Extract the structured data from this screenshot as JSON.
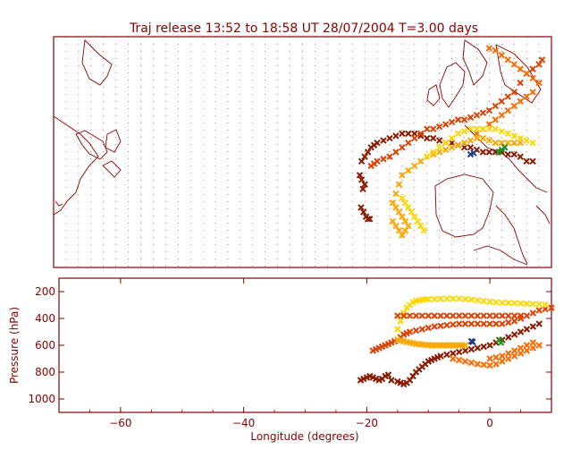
{
  "title": "Traj release 13:52 to 18:58 UT 28/07/2004     T=3.00 days",
  "colors": {
    "frame": "#8b0000",
    "text": "#8b0000",
    "coast": "#8b0000",
    "grid": "#8b0000",
    "background": "#ffffff"
  },
  "chart_data": [
    {
      "type": "scatter",
      "panel": "map",
      "title": "Traj release 13:52 to 18:58 UT 28/07/2004     T=3.00 days",
      "xlim": [
        -70,
        10
      ],
      "ylim": [
        20,
        70
      ],
      "grid": true,
      "series": [
        {
          "color": "#8b1a00",
          "x": [
            -20.5,
            -20,
            -19.5,
            -19,
            -18.5,
            -18,
            -17,
            -16,
            -15,
            -14,
            -13,
            -12,
            -11,
            -10,
            -9,
            -8,
            -7,
            -6,
            -5,
            -4,
            -3,
            -2,
            -1,
            0,
            1,
            2,
            3,
            4,
            5,
            6,
            7,
            -20.8,
            -20.5,
            -20,
            -20.3,
            -20.6,
            -20.2,
            -19.8,
            -19.5,
            -19.2
          ],
          "y": [
            43,
            44,
            45,
            46,
            46.5,
            47,
            47.5,
            48,
            48.5,
            49,
            49,
            49,
            48.5,
            48,
            48,
            47.5,
            47,
            47,
            46.5,
            46,
            46,
            45.5,
            45,
            45,
            45,
            45,
            44.5,
            44.5,
            44,
            43,
            43,
            40,
            39,
            38,
            37,
            33,
            32,
            31,
            30.5,
            30.5
          ]
        },
        {
          "color": "#e04000",
          "x": [
            -19,
            -18.5,
            -18,
            -17,
            -16,
            -15,
            -14,
            -13,
            -12,
            -11,
            -10,
            -9,
            -8,
            -7,
            -6,
            -5,
            -4,
            -3,
            -2,
            -1,
            0,
            1,
            2,
            3,
            4,
            5,
            6,
            7,
            8,
            8.5
          ],
          "y": [
            42,
            42.5,
            43,
            43.5,
            44,
            45,
            46,
            47,
            48,
            49,
            50,
            50,
            50.5,
            51,
            51.5,
            52,
            52,
            52.5,
            53,
            53.5,
            54,
            55,
            56,
            57,
            58,
            60,
            62,
            63,
            64,
            65
          ]
        },
        {
          "color": "#ff6a00",
          "x": [
            -2,
            -1,
            0,
            1,
            2,
            3,
            4,
            5,
            6,
            7,
            8,
            7,
            6,
            5,
            4,
            3,
            2,
            1,
            0
          ],
          "y": [
            49,
            50,
            51,
            52,
            53,
            54,
            55,
            56,
            57,
            58,
            60,
            61,
            62,
            63,
            64,
            65,
            66,
            67,
            67.5
          ]
        },
        {
          "color": "#ffa500",
          "x": [
            -14,
            -14.5,
            -15,
            -15.5,
            -15,
            -14.5,
            -14,
            -13.5,
            -13,
            -13.5,
            -14,
            -14.5,
            -15,
            -15.5,
            -13,
            -12,
            -11,
            -10,
            -9,
            -8,
            -7,
            -6,
            -5,
            -4,
            -3,
            -2,
            -1,
            0,
            1,
            2,
            3,
            4,
            5
          ],
          "y": [
            40,
            38,
            36,
            34,
            33,
            32,
            31,
            30,
            29,
            28,
            27,
            28,
            29,
            30,
            41,
            42,
            43,
            44,
            44.5,
            45,
            45.5,
            46,
            46.5,
            47,
            47.5,
            48,
            48,
            47.5,
            47,
            47,
            47,
            47,
            47
          ]
        },
        {
          "color": "#ffd700",
          "x": [
            -14,
            -13.5,
            -13,
            -12.5,
            -12,
            -11.5,
            -11,
            -10.5,
            -10,
            -9,
            -8,
            -7,
            -6,
            -5,
            -4,
            -3,
            -2,
            -1,
            0,
            1,
            2,
            3,
            4,
            5,
            6,
            7
          ],
          "y": [
            35,
            34,
            33,
            32,
            31,
            30,
            29,
            28,
            44,
            45,
            46,
            47,
            48,
            49,
            49.5,
            50,
            50,
            50,
            50,
            50,
            49.5,
            49,
            48.5,
            48,
            47.5,
            47
          ]
        },
        {
          "color": "#228b22",
          "x": [
            1.5,
            2,
            2.5
          ],
          "y": [
            45,
            45.5,
            46
          ]
        },
        {
          "color": "#1e3a8a",
          "x": [
            -3,
            -2.5
          ],
          "y": [
            44.5,
            44.8
          ]
        }
      ]
    },
    {
      "type": "scatter",
      "panel": "pressure",
      "xlabel": "Longitude  (degrees)",
      "ylabel": "Pressure  (hPa)",
      "xlim": [
        -70,
        10
      ],
      "ylim": [
        1100,
        100
      ],
      "x_ticks": [
        "−60",
        "−40",
        "−20",
        "0"
      ],
      "x_tick_values": [
        -60,
        -40,
        -20,
        0
      ],
      "y_ticks": [
        "200",
        "400",
        "600",
        "800",
        "1000"
      ],
      "y_tick_values": [
        200,
        400,
        600,
        800,
        1000
      ],
      "series": [
        {
          "color": "#8b1a00",
          "x": [
            -21,
            -20.5,
            -20,
            -19.5,
            -19,
            -18.5,
            -18,
            -17.5,
            -17,
            -16.5,
            -16,
            -15,
            -14.5,
            -14,
            -13.5,
            -13,
            -12.5,
            -12,
            -11.5,
            -11,
            -10.5,
            -10,
            -9.5,
            -9,
            -8.5,
            -8,
            -7,
            -6,
            -5,
            -4,
            -3,
            -2,
            -1,
            0,
            1,
            2,
            3,
            4,
            5,
            6,
            7,
            8
          ],
          "y": [
            860,
            850,
            840,
            830,
            840,
            850,
            860,
            850,
            830,
            820,
            860,
            870,
            880,
            890,
            880,
            860,
            830,
            800,
            780,
            760,
            740,
            720,
            710,
            700,
            690,
            680,
            670,
            660,
            650,
            640,
            630,
            620,
            610,
            600,
            580,
            560,
            540,
            520,
            500,
            480,
            460,
            440
          ]
        },
        {
          "color": "#e04000",
          "x": [
            -19,
            -18.5,
            -18,
            -17.5,
            -17,
            -16.5,
            -16,
            -15.5,
            -15,
            -14.5,
            -14,
            -13.5,
            -13,
            -12,
            -11,
            -10,
            -9,
            -8,
            -7,
            -6,
            -5,
            -4,
            -3,
            -2,
            -1,
            0,
            1,
            2,
            3,
            4,
            5,
            6,
            7,
            8,
            9,
            10
          ],
          "y": [
            640,
            630,
            620,
            610,
            600,
            590,
            580,
            570,
            560,
            540,
            520,
            510,
            500,
            490,
            480,
            470,
            460,
            455,
            450,
            445,
            440,
            440,
            440,
            440,
            440,
            440,
            440,
            440,
            430,
            420,
            400,
            380,
            360,
            340,
            330,
            320
          ]
        },
        {
          "color": "#ff6a00",
          "x": [
            -6,
            -5,
            -4,
            -3,
            -2,
            -1,
            0,
            1,
            2,
            3,
            4,
            5,
            6,
            7,
            8,
            0,
            1,
            2,
            3,
            4,
            5,
            6,
            7
          ],
          "y": [
            700,
            710,
            720,
            730,
            740,
            745,
            750,
            740,
            720,
            700,
            680,
            660,
            640,
            620,
            600,
            700,
            690,
            680,
            660,
            640,
            620,
            600,
            580
          ]
        },
        {
          "color": "#ffa500",
          "x": [
            -15,
            -14.5,
            -14,
            -13.5,
            -13,
            -12.5,
            -12,
            -11.5,
            -11,
            -10.5,
            -10,
            -9.5,
            -9,
            -8.5,
            -8,
            -7.5,
            -7,
            -6.5,
            -6,
            -5.5,
            -5,
            -4.5,
            -4
          ],
          "y": [
            560,
            565,
            570,
            575,
            580,
            585,
            590,
            592,
            594,
            596,
            598,
            600,
            600,
            600,
            600,
            600,
            600,
            600,
            600,
            600,
            600,
            600,
            600
          ]
        },
        {
          "color": "#ffd700",
          "x": [
            -15,
            -14.5,
            -14,
            -13.5,
            -13,
            -12.5,
            -12,
            -11.5,
            -11,
            -10.5,
            -10,
            -9,
            -8,
            -7,
            -6,
            -5,
            -4,
            -3,
            -2,
            -1,
            0,
            1,
            2,
            3,
            4,
            5,
            6,
            7,
            8,
            9
          ],
          "y": [
            480,
            420,
            360,
            320,
            300,
            280,
            270,
            265,
            260,
            258,
            256,
            255,
            254,
            253,
            252,
            252,
            255,
            260,
            265,
            270,
            275,
            280,
            282,
            284,
            286,
            288,
            290,
            292,
            294,
            296
          ]
        },
        {
          "color": "#e04000",
          "x": [
            -15,
            -14,
            -13,
            -12,
            -11,
            -10,
            -9,
            -8,
            -7,
            -6,
            -5,
            -4,
            -3,
            -2,
            -1,
            0,
            1,
            2,
            3,
            4,
            5
          ],
          "y": [
            380,
            380,
            380,
            380,
            380,
            380,
            380,
            380,
            380,
            380,
            380,
            380,
            380,
            380,
            380,
            380,
            380,
            380,
            380,
            380,
            380
          ]
        },
        {
          "color": "#228b22",
          "x": [
            1.5,
            1.8
          ],
          "y": [
            560,
            580
          ]
        },
        {
          "color": "#1e3a8a",
          "x": [
            -3,
            -2.8
          ],
          "y": [
            570,
            575
          ]
        }
      ]
    }
  ]
}
